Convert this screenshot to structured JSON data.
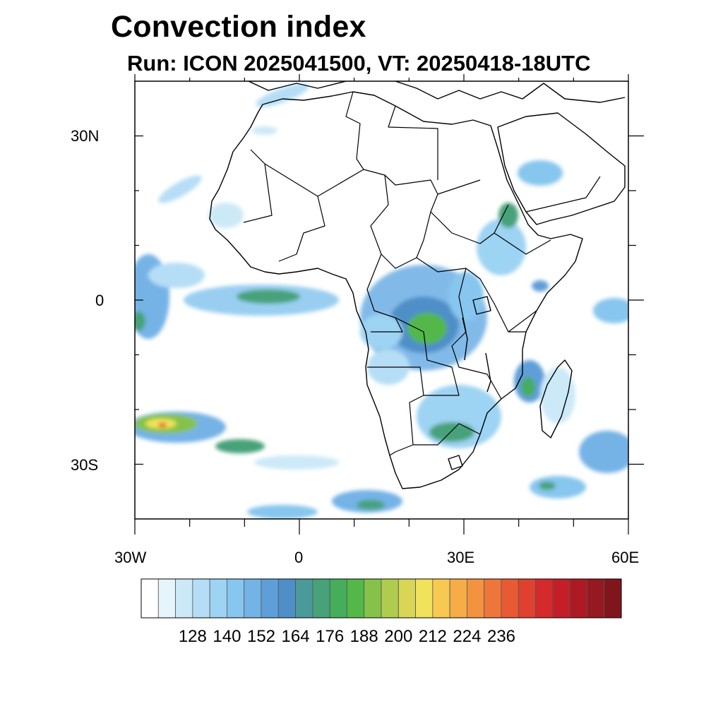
{
  "title": "Convection index",
  "subtitle": "Run: ICON 2025041500,  VT: 20250418-18UTC",
  "map": {
    "region": "Africa",
    "lon_range": [
      -30,
      60
    ],
    "lat_range": [
      -40,
      40
    ],
    "lat_labels": [
      "30N",
      "0",
      "30S"
    ],
    "lon_labels": [
      "30W",
      "0",
      "30E",
      "60E"
    ]
  },
  "colorbar": {
    "labels": [
      "128",
      "140",
      "152",
      "164",
      "176",
      "188",
      "200",
      "212",
      "224",
      "236"
    ],
    "colors": [
      "#ffffff",
      "#e6f4fc",
      "#cce9f8",
      "#b5def6",
      "#9dd3f3",
      "#87c6ee",
      "#74b3e6",
      "#5f9fd8",
      "#4f8fc8",
      "#4a9a9a",
      "#47a27a",
      "#45ad5c",
      "#53b848",
      "#86c24a",
      "#b0cc4e",
      "#d8d654",
      "#f0e25a",
      "#f8c950",
      "#f6ad48",
      "#f39340",
      "#ee763a",
      "#e85a33",
      "#e0402e",
      "#d42a2b",
      "#c41f27",
      "#ae1a24",
      "#961820",
      "#80161c"
    ]
  },
  "chart_data": {
    "type": "heatmap",
    "title": "Convection index",
    "subtitle": "Run: ICON 2025041500,  VT: 20250418-18UTC",
    "x_range": [
      -30,
      60
    ],
    "y_range": [
      -40,
      40
    ],
    "x_ticks": [
      "30W",
      "0",
      "30E",
      "60E"
    ],
    "y_ticks": [
      "30N",
      "0",
      "30S"
    ],
    "levels": [
      128,
      140,
      152,
      164,
      176,
      188,
      200,
      212,
      224,
      236
    ],
    "regions": [
      {
        "lon": -6,
        "lat": 1.5,
        "level": 164
      },
      {
        "lon": 22,
        "lat": -4,
        "level": 172
      },
      {
        "lon": -22,
        "lat": -24,
        "level": 200
      },
      {
        "lon": -10,
        "lat": -27,
        "level": 180
      },
      {
        "lon": 28,
        "lat": -24,
        "level": 168
      },
      {
        "lon": 42,
        "lat": -15,
        "level": 168
      },
      {
        "lon": 44,
        "lat": 22,
        "level": 140
      },
      {
        "lon": 38,
        "lat": 13,
        "level": 152
      },
      {
        "lon": -29,
        "lat": -4,
        "level": 170
      }
    ]
  }
}
